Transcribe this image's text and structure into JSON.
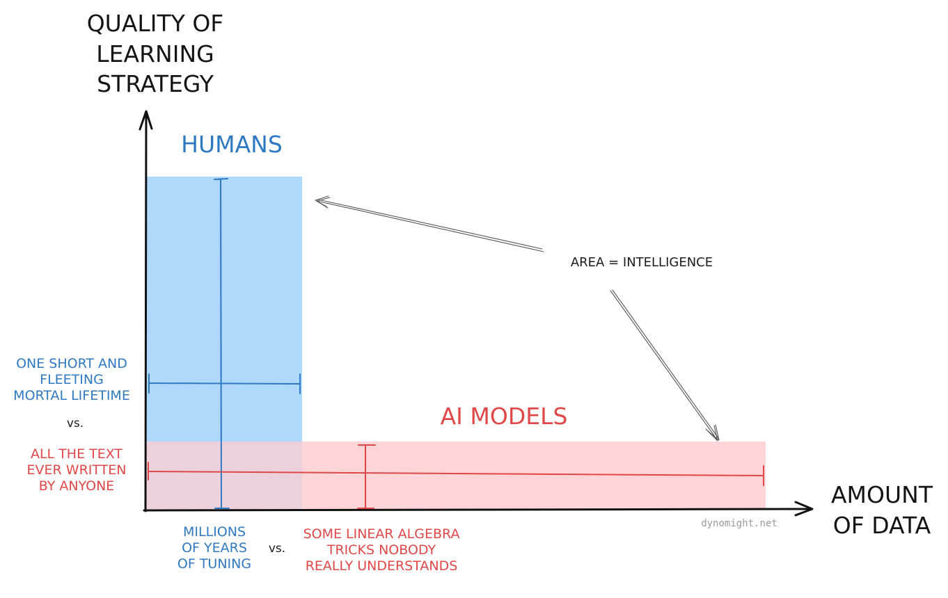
{
  "y_axis_title": [
    "QUALITY OF",
    "LEARNING",
    "STRATEGY"
  ],
  "x_axis_title": [
    "AMOUNT",
    "OF DATA"
  ],
  "humans": {
    "label": "HUMANS",
    "color": "#2f79c2",
    "fill": "#aed8fc",
    "data_label": [
      "ONE SHORT AND",
      "FLEETING",
      "MORTAL LIFETIME"
    ],
    "strategy_label": [
      "MILLIONS",
      "OF YEARS",
      "OF TUNING"
    ]
  },
  "ai_models": {
    "label": "AI MODELS",
    "color": "#e04848",
    "fill": "#ffd5d7",
    "data_label": [
      "ALL THE TEXT",
      "EVER WRITTEN",
      "BY ANYONE"
    ],
    "strategy_label": [
      "SOME LINEAR ALGEBRA",
      "TRICKS NOBODY",
      "REALLY UNDERSTANDS"
    ]
  },
  "overlap_fill": "#ecd0dc",
  "left_vs": "vs.",
  "bottom_vs": "vs.",
  "annotation": "AREA = INTELLIGENCE",
  "credit": "dynomight.net"
}
